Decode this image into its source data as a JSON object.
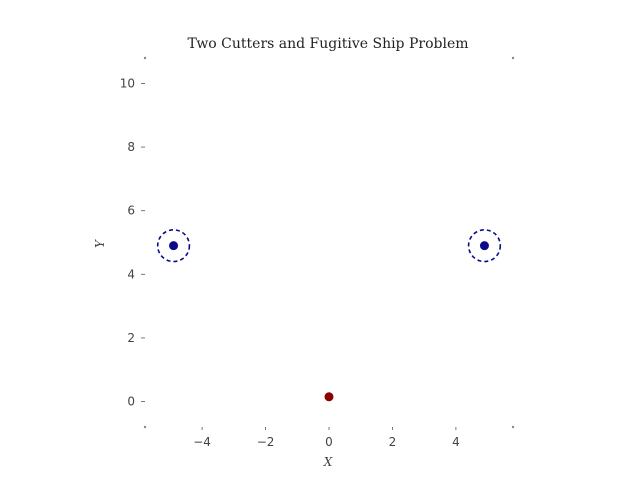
{
  "chart_data": {
    "type": "scatter",
    "title": "Two Cutters and Fugitive Ship Problem",
    "xlabel": "X",
    "ylabel": "Y",
    "xlim": [
      -5.8,
      5.8
    ],
    "ylim": [
      -0.8,
      10.8
    ],
    "grid": false,
    "legend": "none",
    "x_ticks": [
      -4,
      -2,
      0,
      2,
      4
    ],
    "x_tick_labels": [
      "−4",
      "−2",
      "0",
      "2",
      "4"
    ],
    "y_ticks": [
      0,
      2,
      4,
      6,
      8,
      10
    ],
    "y_tick_labels": [
      "0",
      "2",
      "4",
      "6",
      "8",
      "10"
    ],
    "series": [
      {
        "points": [
          {
            "x": -4.9,
            "y": 4.9
          },
          {
            "x": 4.9,
            "y": 4.9
          }
        ],
        "color": "#0b0b8a",
        "marker": "dot-with-dashed-ring",
        "ring_radius": 0.5
      },
      {
        "points": [
          {
            "x": 0.0,
            "y": 0.15
          }
        ],
        "color": "#8b0000",
        "marker": "dot"
      }
    ]
  }
}
